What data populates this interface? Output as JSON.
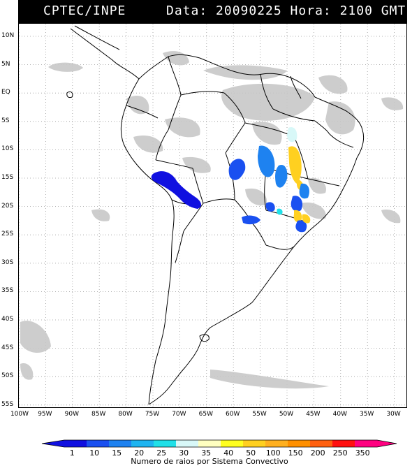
{
  "header": {
    "source": "CPTEC/INPE",
    "datetime": "Data: 20090225 Hora: 2100 GMT"
  },
  "map": {
    "lat_labels": [
      "10N",
      "5N",
      "EQ",
      "5S",
      "10S",
      "15S",
      "20S",
      "25S",
      "30S",
      "35S",
      "40S",
      "45S",
      "50S",
      "55S"
    ],
    "lon_labels": [
      "100W",
      "95W",
      "90W",
      "85W",
      "80W",
      "75W",
      "70W",
      "65W",
      "60W",
      "55W",
      "50W",
      "45W",
      "40W",
      "35W",
      "30W"
    ]
  },
  "legend": {
    "values": [
      "1",
      "10",
      "15",
      "20",
      "25",
      "30",
      "35",
      "40",
      "50",
      "100",
      "150",
      "200",
      "250",
      "350"
    ],
    "colors": [
      "#1010e0",
      "#1a50f0",
      "#1e82f0",
      "#1eb4f0",
      "#20e0e8",
      "#d8f8f8",
      "#ffffc0",
      "#ffff20",
      "#ffd020",
      "#ffb020",
      "#ff9000",
      "#ff6010",
      "#ff1010",
      "#ff0080"
    ],
    "caption": "Numero de raios por Sistema Convectivo"
  }
}
